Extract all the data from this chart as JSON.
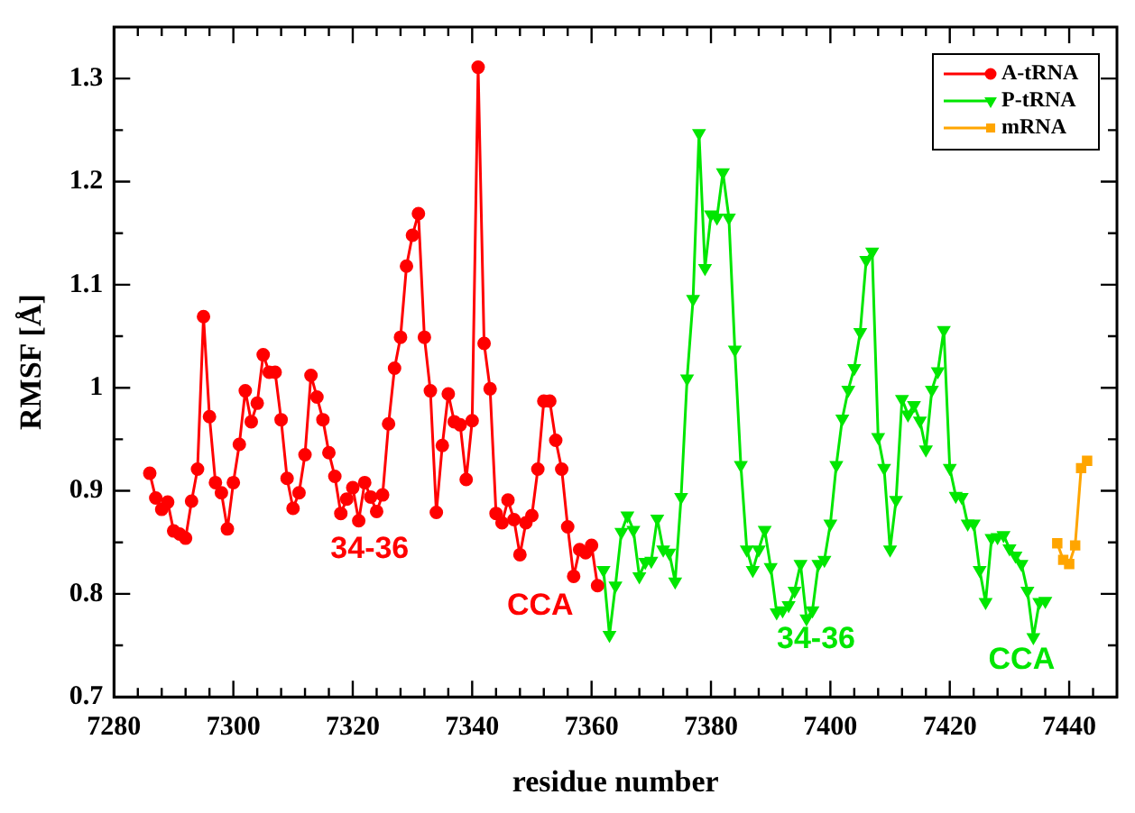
{
  "chart_data": {
    "type": "line",
    "xlabel": "residue number",
    "ylabel": "RMSF [Å]",
    "xlim": [
      7280,
      7448
    ],
    "ylim": [
      0.7,
      1.35
    ],
    "xticks": [
      7280,
      {
        "value": 7284,
        "label": null
      },
      {
        "value": 7288,
        "label": null
      },
      {
        "value": 7292,
        "label": null
      },
      {
        "value": 7296,
        "label": null
      },
      7300,
      {
        "value": 7304,
        "label": null
      },
      {
        "value": 7308,
        "label": null
      },
      {
        "value": 7312,
        "label": null
      },
      {
        "value": 7316,
        "label": null
      },
      7320,
      {
        "value": 7324,
        "label": null
      },
      {
        "value": 7328,
        "label": null
      },
      {
        "value": 7332,
        "label": null
      },
      {
        "value": 7336,
        "label": null
      },
      7340,
      {
        "value": 7344,
        "label": null
      },
      {
        "value": 7348,
        "label": null
      },
      {
        "value": 7352,
        "label": null
      },
      {
        "value": 7356,
        "label": null
      },
      7360,
      {
        "value": 7364,
        "label": null
      },
      {
        "value": 7368,
        "label": null
      },
      {
        "value": 7372,
        "label": null
      },
      {
        "value": 7376,
        "label": null
      },
      7380,
      {
        "value": 7384,
        "label": null
      },
      {
        "value": 7388,
        "label": null
      },
      {
        "value": 7392,
        "label": null
      },
      {
        "value": 7396,
        "label": null
      },
      7400,
      {
        "value": 7404,
        "label": null
      },
      {
        "value": 7408,
        "label": null
      },
      {
        "value": 7412,
        "label": null
      },
      {
        "value": 7416,
        "label": null
      },
      7420,
      {
        "value": 7424,
        "label": null
      },
      {
        "value": 7428,
        "label": null
      },
      {
        "value": 7432,
        "label": null
      },
      {
        "value": 7436,
        "label": null
      },
      7440,
      {
        "value": 7444,
        "label": null
      }
    ],
    "yticks": [
      0.7,
      {
        "value": 0.75,
        "label": null
      },
      0.8,
      {
        "value": 0.85,
        "label": null
      },
      0.9,
      {
        "value": 0.95,
        "label": null
      },
      1,
      {
        "value": 1.05,
        "label": null
      },
      1.1,
      {
        "value": 1.15,
        "label": null
      },
      1.2,
      {
        "value": 1.25,
        "label": null
      },
      1.3
    ],
    "grid": false,
    "legend": "top right",
    "line_style": "solid",
    "series": [
      {
        "name": "A-tRNA",
        "color": "#ff0000",
        "marker": "circle",
        "x": [
          7286,
          7287,
          7288,
          7289,
          7290,
          7291,
          7292,
          7293,
          7294,
          7295,
          7296,
          7297,
          7298,
          7299,
          7300,
          7301,
          7302,
          7303,
          7304,
          7305,
          7306,
          7307,
          7308,
          7309,
          7310,
          7311,
          7312,
          7313,
          7314,
          7315,
          7316,
          7317,
          7318,
          7319,
          7320,
          7321,
          7322,
          7323,
          7324,
          7325,
          7326,
          7327,
          7328,
          7329,
          7330,
          7331,
          7332,
          7333,
          7334,
          7335,
          7336,
          7337,
          7338,
          7339,
          7340,
          7341,
          7342,
          7343,
          7344,
          7345,
          7346,
          7347,
          7348,
          7349,
          7350,
          7351,
          7352,
          7353,
          7354,
          7355,
          7356,
          7357,
          7358,
          7359,
          7360,
          7361
        ],
        "values": [
          0.917,
          0.893,
          0.882,
          0.889,
          0.861,
          0.858,
          0.854,
          0.89,
          0.921,
          1.069,
          0.972,
          0.908,
          0.898,
          0.863,
          0.908,
          0.945,
          0.997,
          0.967,
          0.985,
          1.032,
          1.015,
          1.015,
          0.969,
          0.912,
          0.883,
          0.898,
          0.935,
          1.012,
          0.991,
          0.969,
          0.937,
          0.914,
          0.878,
          0.892,
          0.903,
          0.871,
          0.908,
          0.894,
          0.88,
          0.896,
          0.965,
          1.019,
          1.049,
          1.118,
          1.148,
          1.169,
          1.049,
          0.997,
          0.879,
          0.944,
          0.994,
          0.967,
          0.964,
          0.911,
          0.968,
          1.311,
          1.043,
          0.999,
          0.878,
          0.869,
          0.891,
          0.872,
          0.838,
          0.869,
          0.876,
          0.921,
          0.987,
          0.987,
          0.949,
          0.921,
          0.865,
          0.817,
          0.843,
          0.84,
          0.847,
          0.808
        ]
      },
      {
        "name": "P-tRNA",
        "color": "#00e600",
        "marker": "triangle",
        "x": [
          7362,
          7363,
          7364,
          7365,
          7366,
          7367,
          7368,
          7369,
          7370,
          7371,
          7372,
          7373,
          7374,
          7375,
          7376,
          7377,
          7378,
          7379,
          7380,
          7381,
          7382,
          7383,
          7384,
          7385,
          7386,
          7387,
          7388,
          7389,
          7390,
          7391,
          7392,
          7393,
          7394,
          7395,
          7396,
          7397,
          7398,
          7399,
          7400,
          7401,
          7402,
          7403,
          7404,
          7405,
          7406,
          7407,
          7408,
          7409,
          7410,
          7411,
          7412,
          7413,
          7414,
          7415,
          7416,
          7417,
          7418,
          7419,
          7420,
          7421,
          7422,
          7423,
          7424,
          7425,
          7426,
          7427,
          7428,
          7429,
          7430,
          7431,
          7432,
          7433,
          7434,
          7435,
          7436
        ],
        "values": [
          0.823,
          0.76,
          0.808,
          0.86,
          0.876,
          0.862,
          0.817,
          0.831,
          0.832,
          0.873,
          0.843,
          0.84,
          0.812,
          0.894,
          1.009,
          1.086,
          1.247,
          1.116,
          1.168,
          1.165,
          1.209,
          1.165,
          1.037,
          0.925,
          0.843,
          0.823,
          0.843,
          0.862,
          0.826,
          0.782,
          0.784,
          0.789,
          0.803,
          0.829,
          0.776,
          0.784,
          0.829,
          0.833,
          0.868,
          0.925,
          0.97,
          0.998,
          1.019,
          1.054,
          1.124,
          1.132,
          0.952,
          0.922,
          0.843,
          0.891,
          0.989,
          0.974,
          0.983,
          0.968,
          0.94,
          0.998,
          1.016,
          1.056,
          0.922,
          0.895,
          0.894,
          0.868,
          0.868,
          0.823,
          0.792,
          0.854,
          0.855,
          0.857,
          0.844,
          0.837,
          0.829,
          0.803,
          0.758,
          0.792,
          0.793
        ]
      },
      {
        "name": "mRNA",
        "color": "#ffa500",
        "marker": "square",
        "x": [
          7438,
          7439,
          7440,
          7441,
          7442,
          7443
        ],
        "values": [
          0.849,
          0.833,
          0.829,
          0.847,
          0.922,
          0.929
        ]
      }
    ],
    "annotations": [
      "34-36",
      "CCA",
      "34-36",
      "CCA"
    ]
  }
}
